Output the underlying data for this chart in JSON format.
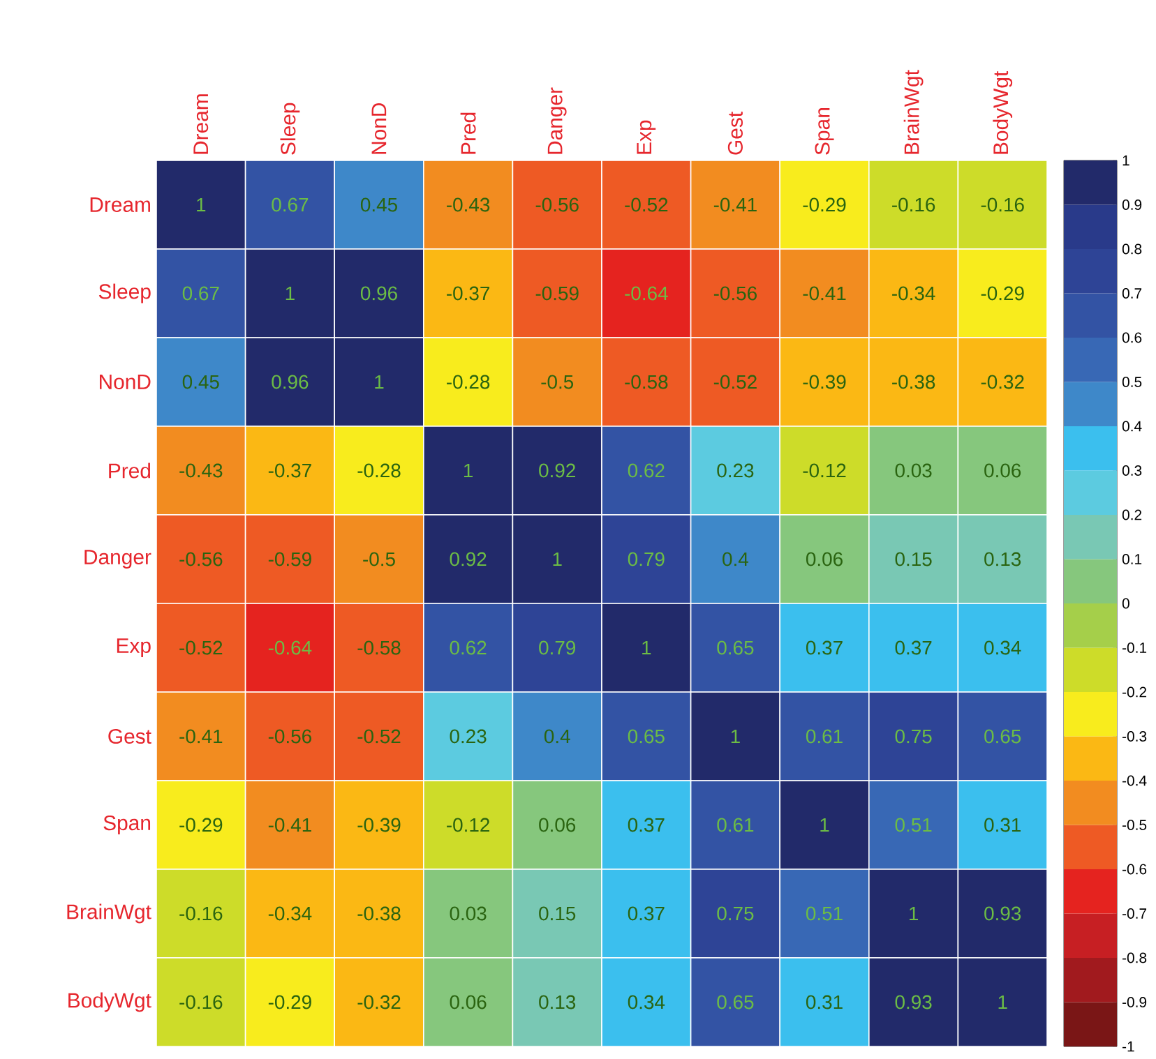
{
  "chart_data": {
    "type": "heatmap",
    "categories": [
      "Dream",
      "Sleep",
      "NonD",
      "Pred",
      "Danger",
      "Exp",
      "Gest",
      "Span",
      "BrainWgt",
      "BodyWgt"
    ],
    "y_categories": [
      "Dream",
      "Sleep",
      "NonD",
      "Pred",
      "Danger",
      "Exp",
      "Gest",
      "Span",
      "BrainWgt",
      "BodyWgt"
    ],
    "cells": [
      [
        1,
        0.67,
        0.45,
        -0.43,
        -0.56,
        -0.52,
        -0.41,
        -0.29,
        -0.16,
        -0.16
      ],
      [
        0.67,
        1,
        0.96,
        -0.37,
        -0.59,
        -0.64,
        -0.56,
        -0.41,
        -0.34,
        -0.29
      ],
      [
        0.45,
        0.96,
        1,
        -0.28,
        -0.5,
        -0.58,
        -0.52,
        -0.39,
        -0.38,
        -0.32
      ],
      [
        -0.43,
        -0.37,
        -0.28,
        1,
        0.92,
        0.62,
        0.23,
        -0.12,
        0.03,
        0.06
      ],
      [
        -0.56,
        -0.59,
        -0.5,
        0.92,
        1,
        0.79,
        0.4,
        0.06,
        0.15,
        0.13
      ],
      [
        -0.52,
        -0.64,
        -0.58,
        0.62,
        0.79,
        1,
        0.65,
        0.37,
        0.37,
        0.34
      ],
      [
        -0.41,
        -0.56,
        -0.52,
        0.23,
        0.4,
        0.65,
        1,
        0.61,
        0.75,
        0.65
      ],
      [
        -0.29,
        -0.41,
        -0.39,
        -0.12,
        0.06,
        0.37,
        0.61,
        1,
        0.51,
        0.31
      ],
      [
        -0.16,
        -0.34,
        -0.38,
        0.03,
        0.15,
        0.37,
        0.75,
        0.51,
        1,
        0.93
      ],
      [
        -0.16,
        -0.29,
        -0.32,
        0.06,
        0.13,
        0.34,
        0.65,
        0.31,
        0.93,
        1
      ]
    ],
    "clim": [
      -1,
      1
    ],
    "cticks": [
      -1,
      -0.9,
      -0.8,
      -0.7,
      -0.6,
      -0.5,
      -0.4,
      -0.3,
      -0.2,
      -0.1,
      0,
      0.1,
      0.2,
      0.3,
      0.4,
      0.5,
      0.6,
      0.7,
      0.8,
      0.9,
      1
    ],
    "data_labels": true
  }
}
